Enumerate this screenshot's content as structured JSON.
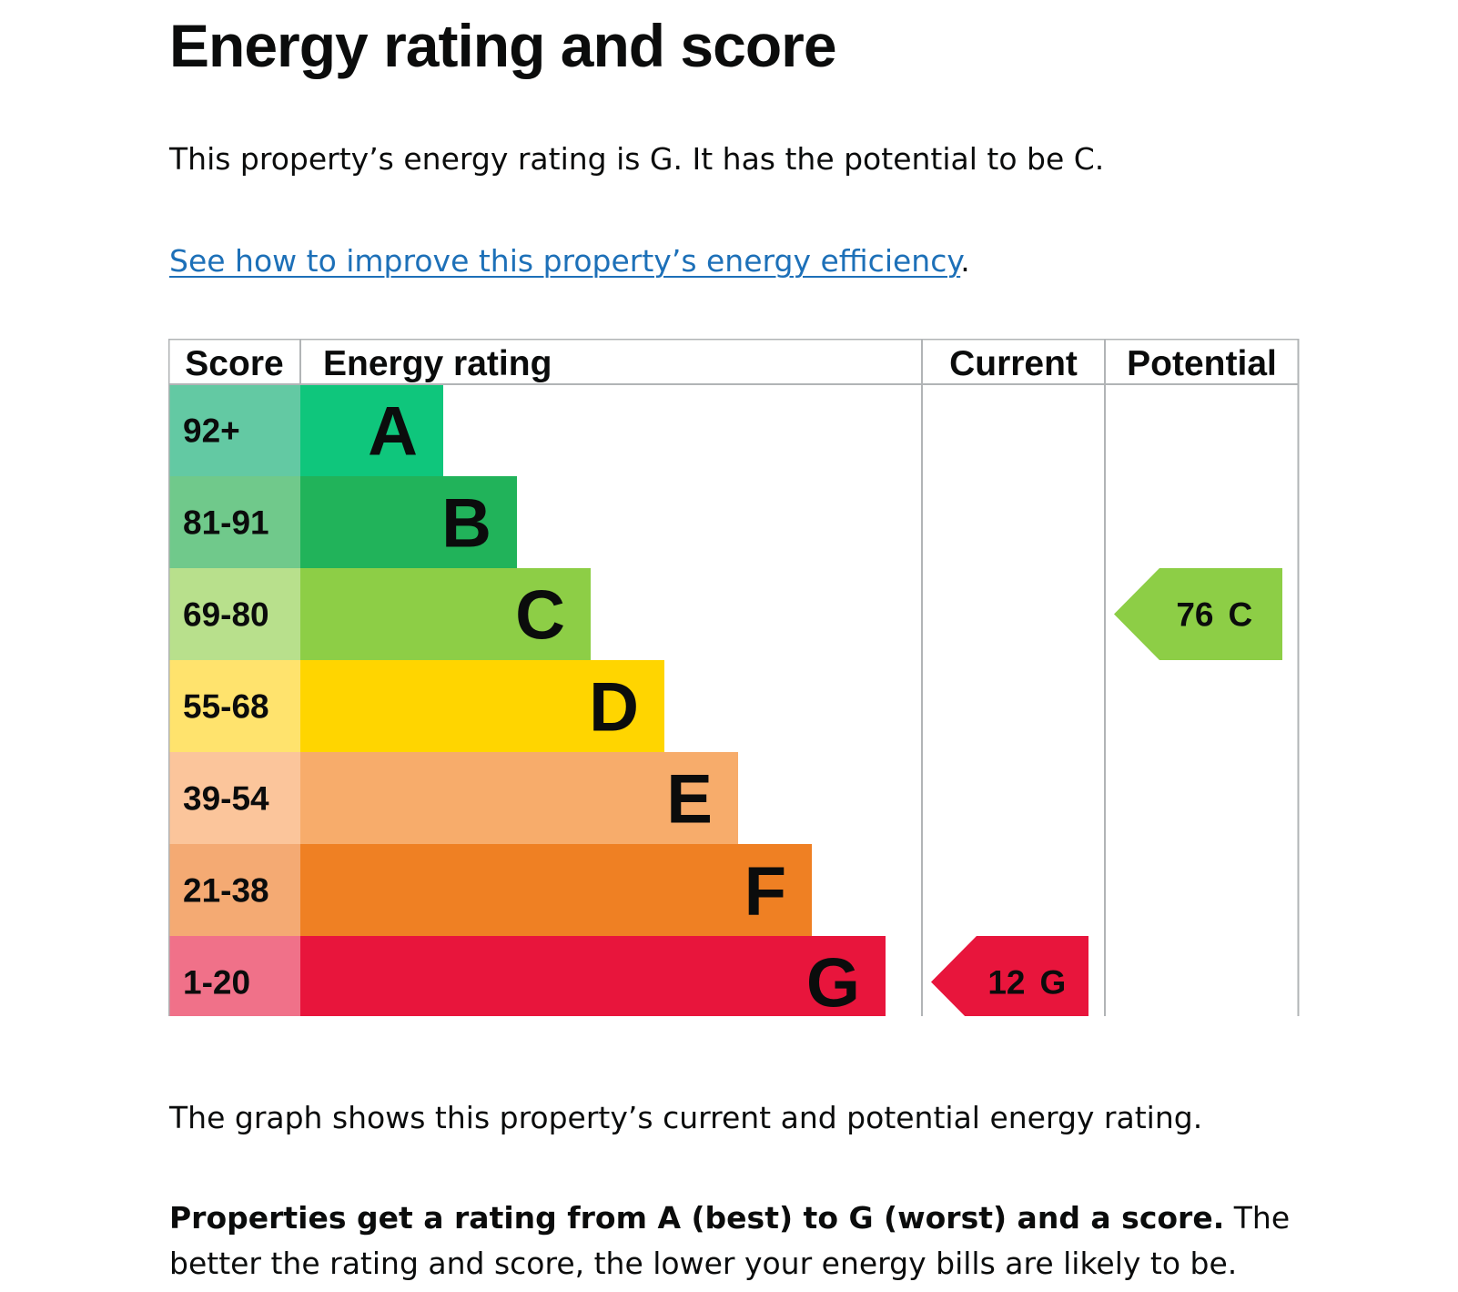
{
  "heading": "Energy rating and score",
  "summary": "This property’s energy rating is G. It has the potential to be C.",
  "improve_link": "See how to improve this property’s energy efficiency",
  "improve_link_suffix": ".",
  "graph_note": "The graph shows this property’s current and potential energy rating.",
  "explain_bold": "Properties get a rating from A (best) to G (worst) and a score.",
  "explain_rest": " The better the rating and score, the lower your energy bills are likely to be.",
  "chart_data": {
    "type": "table",
    "headers": {
      "score": "Score",
      "rating": "Energy rating",
      "current": "Current",
      "potential": "Potential"
    },
    "bands": [
      {
        "letter": "A",
        "range": "92+",
        "band_color": "#0fc67c",
        "score_color": "#63c9a3"
      },
      {
        "letter": "B",
        "range": "81-91",
        "band_color": "#21b35a",
        "score_color": "#70c98b"
      },
      {
        "letter": "C",
        "range": "69-80",
        "band_color": "#8dce46",
        "score_color": "#b8e08c"
      },
      {
        "letter": "D",
        "range": "55-68",
        "band_color": "#ffd500",
        "score_color": "#ffe36d"
      },
      {
        "letter": "E",
        "range": "39-54",
        "band_color": "#f7ac6b",
        "score_color": "#fbc59b"
      },
      {
        "letter": "F",
        "range": "21-38",
        "band_color": "#ef8023",
        "score_color": "#f4aa73"
      },
      {
        "letter": "G",
        "range": "1-20",
        "band_color": "#e8153c",
        "score_color": "#f07189"
      }
    ],
    "current": {
      "score": "12",
      "letter": "G",
      "color": "#e8153c"
    },
    "potential": {
      "score": "76",
      "letter": "C",
      "color": "#8dce46"
    }
  }
}
